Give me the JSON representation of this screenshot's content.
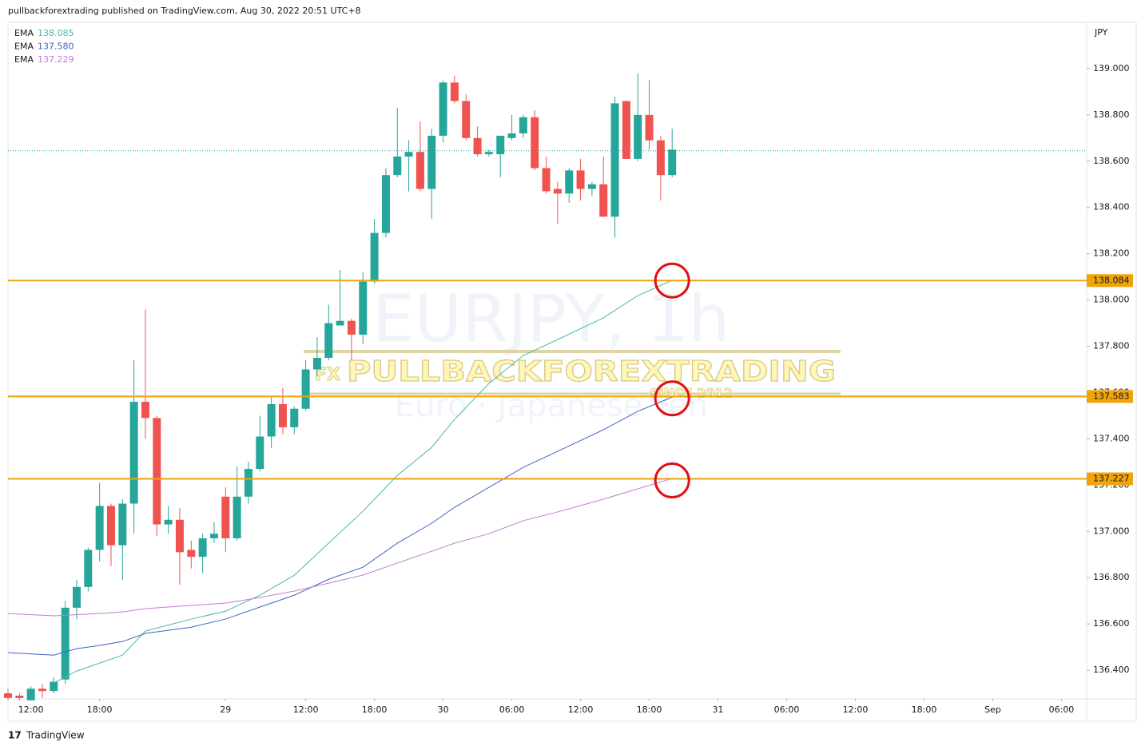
{
  "header": "pullbackforextrading published on TradingView.com, Aug 30, 2022 20:51 UTC+8",
  "footer": "TradingView",
  "chart_data": {
    "type": "candlestick",
    "watermark": {
      "symbol": "EURJPY, 1h",
      "description": "Euro · Japanese Yen",
      "logo": "PULLBACKFOREXTRADING",
      "logo_badge": "FX",
      "logo_since": "SINCE 2012"
    },
    "y_axis_label": "JPY",
    "up_color": "#26a69a",
    "down_color": "#ef5350",
    "open": [
      136.3,
      136.29,
      136.27,
      136.32,
      136.31,
      136.36,
      136.67,
      136.76,
      136.92,
      137.11,
      136.94,
      137.12,
      137.56,
      137.49,
      137.03,
      137.05,
      136.92,
      136.89,
      136.97,
      137.15,
      136.97,
      137.15,
      137.27,
      137.41,
      137.55,
      137.45,
      137.53,
      137.7,
      137.75,
      137.89,
      137.91,
      137.85,
      138.08,
      138.29,
      138.54,
      138.62,
      138.64,
      138.48,
      138.71,
      138.94,
      138.86,
      138.7,
      138.63,
      138.63,
      138.7,
      138.72,
      138.79,
      138.57,
      138.48,
      138.46,
      138.56,
      138.48,
      138.5,
      138.36,
      138.86,
      138.61,
      138.8,
      138.69,
      138.54
    ],
    "high": [
      136.32,
      136.3,
      136.33,
      136.34,
      136.37,
      136.7,
      136.79,
      136.93,
      137.21,
      137.12,
      137.14,
      137.74,
      137.96,
      137.5,
      137.11,
      137.1,
      136.96,
      136.99,
      137.04,
      137.19,
      137.28,
      137.3,
      137.5,
      137.58,
      137.62,
      137.54,
      137.74,
      137.84,
      137.98,
      138.13,
      137.92,
      138.12,
      138.35,
      138.57,
      138.83,
      138.69,
      138.77,
      138.74,
      138.95,
      138.97,
      138.89,
      138.75,
      138.65,
      138.71,
      138.8,
      138.8,
      138.82,
      138.62,
      138.51,
      138.57,
      138.61,
      138.51,
      138.62,
      138.88,
      138.86,
      138.98,
      138.95,
      138.71,
      138.74
    ],
    "low": [
      136.27,
      136.27,
      136.27,
      136.28,
      136.3,
      136.34,
      136.62,
      136.74,
      136.87,
      136.85,
      136.79,
      136.99,
      137.4,
      136.98,
      136.99,
      136.77,
      136.84,
      136.82,
      136.95,
      136.91,
      136.96,
      137.12,
      137.26,
      137.36,
      137.42,
      137.42,
      137.52,
      137.67,
      137.74,
      137.89,
      137.74,
      137.81,
      138.07,
      138.27,
      138.53,
      138.47,
      138.47,
      138.35,
      138.68,
      138.85,
      138.69,
      138.62,
      138.62,
      138.53,
      138.69,
      138.7,
      138.56,
      138.46,
      138.33,
      138.42,
      138.43,
      138.45,
      138.36,
      138.27,
      138.61,
      138.6,
      138.65,
      138.43,
      138.53
    ],
    "close": [
      136.28,
      136.28,
      136.32,
      136.31,
      136.35,
      136.67,
      136.76,
      136.92,
      137.11,
      136.94,
      137.12,
      137.56,
      137.49,
      137.03,
      137.05,
      136.91,
      136.89,
      136.97,
      136.99,
      136.97,
      137.15,
      137.27,
      137.41,
      137.55,
      137.45,
      137.53,
      137.7,
      137.75,
      137.9,
      137.91,
      137.85,
      138.08,
      138.29,
      138.54,
      138.62,
      138.64,
      138.48,
      138.71,
      138.94,
      138.86,
      138.7,
      138.63,
      138.64,
      138.71,
      138.72,
      138.79,
      138.57,
      138.47,
      138.46,
      138.56,
      138.48,
      138.5,
      138.36,
      138.85,
      138.61,
      138.8,
      138.69,
      138.54,
      138.65
    ],
    "series": [
      {
        "name": "EMA",
        "legend_label": "138.085",
        "color": "#4db6ac",
        "x": [
          4,
          6,
          8,
          10,
          12,
          16,
          19,
          22,
          25,
          28,
          31,
          34,
          37,
          39,
          42,
          45,
          48,
          52,
          55,
          58
        ],
        "values": [
          136.345,
          136.396,
          136.431,
          136.465,
          136.569,
          136.621,
          136.655,
          136.724,
          136.81,
          136.949,
          137.087,
          137.242,
          137.363,
          137.484,
          137.639,
          137.76,
          137.829,
          137.923,
          138.019,
          138.085
        ]
      },
      {
        "name": "EMA",
        "legend_label": "137.580",
        "color": "#3f64c4",
        "x": [
          0,
          4,
          6,
          8,
          10,
          12,
          16,
          19,
          22,
          25,
          28,
          31,
          34,
          37,
          39,
          42,
          45,
          48,
          52,
          55,
          58
        ],
        "values": [
          136.476,
          136.465,
          136.493,
          136.507,
          136.524,
          136.559,
          136.586,
          136.621,
          136.673,
          136.724,
          136.793,
          136.845,
          136.949,
          137.035,
          137.104,
          137.19,
          137.277,
          137.346,
          137.439,
          137.519,
          137.58
        ]
      },
      {
        "name": "EMA",
        "legend_label": "137.229",
        "color": "#c27bd0",
        "x": [
          0,
          4,
          8,
          10,
          12,
          16,
          19,
          22,
          25,
          28,
          31,
          34,
          37,
          39,
          42,
          45,
          48,
          52,
          55,
          58
        ],
        "values": [
          136.645,
          136.635,
          136.645,
          136.652,
          136.666,
          136.68,
          136.69,
          136.714,
          136.742,
          136.776,
          136.811,
          136.863,
          136.914,
          136.949,
          136.99,
          137.046,
          137.084,
          137.139,
          137.184,
          137.229
        ]
      }
    ],
    "hlines_color": "#f0a30a",
    "hlines": [
      {
        "value": 138.084,
        "label": "138.084"
      },
      {
        "value": 137.583,
        "label": "137.583"
      },
      {
        "value": 137.227,
        "label": "137.227"
      }
    ],
    "circles_color": "#e01010",
    "circles": [
      {
        "x": 58,
        "y": 138.084
      },
      {
        "x": 58,
        "y": 137.575
      },
      {
        "x": 58,
        "y": 137.22
      }
    ],
    "price_line": 138.645,
    "xlim": [
      0,
      94.2
    ],
    "xticks": [
      {
        "value": 2,
        "label": "12:00"
      },
      {
        "value": 8,
        "label": "18:00"
      },
      {
        "value": 19,
        "label": "29"
      },
      {
        "value": 26,
        "label": "12:00"
      },
      {
        "value": 32,
        "label": "18:00"
      },
      {
        "value": 38,
        "label": "30"
      },
      {
        "value": 44,
        "label": "06:00"
      },
      {
        "value": 50,
        "label": "12:00"
      },
      {
        "value": 56,
        "label": "18:00"
      },
      {
        "value": 62,
        "label": "31"
      },
      {
        "value": 68,
        "label": "06:00"
      },
      {
        "value": 74,
        "label": "12:00"
      },
      {
        "value": 80,
        "label": "18:00"
      },
      {
        "value": 86,
        "label": "Sep"
      },
      {
        "value": 92,
        "label": "06:00"
      }
    ],
    "ylim": [
      136.276,
      139.2
    ],
    "yticks": [
      {
        "value": 136.4,
        "label": "136.400"
      },
      {
        "value": 136.6,
        "label": "136.600"
      },
      {
        "value": 136.8,
        "label": "136.800"
      },
      {
        "value": 137.0,
        "label": "137.000"
      },
      {
        "value": 137.2,
        "label": "137.200"
      },
      {
        "value": 137.4,
        "label": "137.400"
      },
      {
        "value": 137.6,
        "label": "137.600"
      },
      {
        "value": 137.8,
        "label": "137.800"
      },
      {
        "value": 138.0,
        "label": "138.000"
      },
      {
        "value": 138.2,
        "label": "138.200"
      },
      {
        "value": 138.4,
        "label": "138.400"
      },
      {
        "value": 138.6,
        "label": "138.600"
      },
      {
        "value": 138.8,
        "label": "138.800"
      },
      {
        "value": 139.0,
        "label": "139.000"
      }
    ],
    "grid": false
  }
}
